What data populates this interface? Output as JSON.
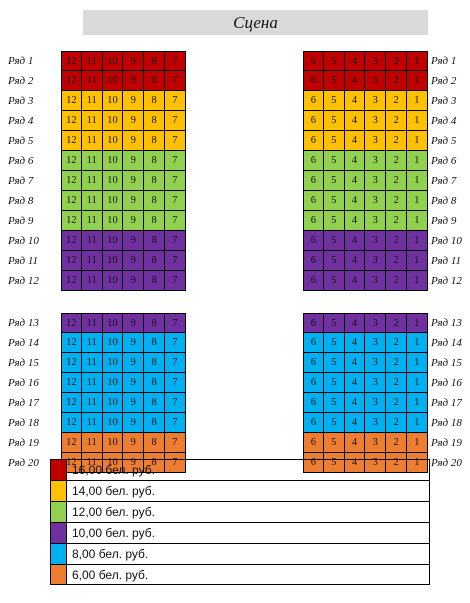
{
  "stage": {
    "label": "Сцена"
  },
  "seats": {
    "left": [
      "12",
      "11",
      "10",
      "9",
      "8",
      "7"
    ],
    "right": [
      "6",
      "5",
      "4",
      "3",
      "2",
      "1"
    ]
  },
  "rows_top": [
    {
      "label": "Ряд 1",
      "tier": 0
    },
    {
      "label": "Ряд 2",
      "tier": 0
    },
    {
      "label": "Ряд 3",
      "tier": 1
    },
    {
      "label": "Ряд 4",
      "tier": 1
    },
    {
      "label": "Ряд 5",
      "tier": 1
    },
    {
      "label": "Ряд 6",
      "tier": 2
    },
    {
      "label": "Ряд 7",
      "tier": 2
    },
    {
      "label": "Ряд 8",
      "tier": 2
    },
    {
      "label": "Ряд 9",
      "tier": 2
    },
    {
      "label": "Ряд 10",
      "tier": 3
    },
    {
      "label": "Ряд 11",
      "tier": 3
    },
    {
      "label": "Ряд 12",
      "tier": 3
    }
  ],
  "rows_bottom": [
    {
      "label": "Ряд 13",
      "tier": 3
    },
    {
      "label": "Ряд 14",
      "tier": 4
    },
    {
      "label": "Ряд 15",
      "tier": 4
    },
    {
      "label": "Ряд 16",
      "tier": 4
    },
    {
      "label": "Ряд 17",
      "tier": 4
    },
    {
      "label": "Ряд 18",
      "tier": 4
    },
    {
      "label": "Ряд 19",
      "tier": 5
    },
    {
      "label": "Ряд 20",
      "tier": 5
    }
  ],
  "price_tiers": [
    {
      "color": "#c00000",
      "label": "16,00 бел. руб."
    },
    {
      "color": "#ffc000",
      "label": "14,00 бел. руб."
    },
    {
      "color": "#92d050",
      "label": "12,00 бел. руб."
    },
    {
      "color": "#7030a0",
      "label": "10,00 бел. руб."
    },
    {
      "color": "#00b0f0",
      "label": "8,00 бел. руб."
    },
    {
      "color": "#ed7d31",
      "label": "6,00 бел. руб."
    }
  ]
}
